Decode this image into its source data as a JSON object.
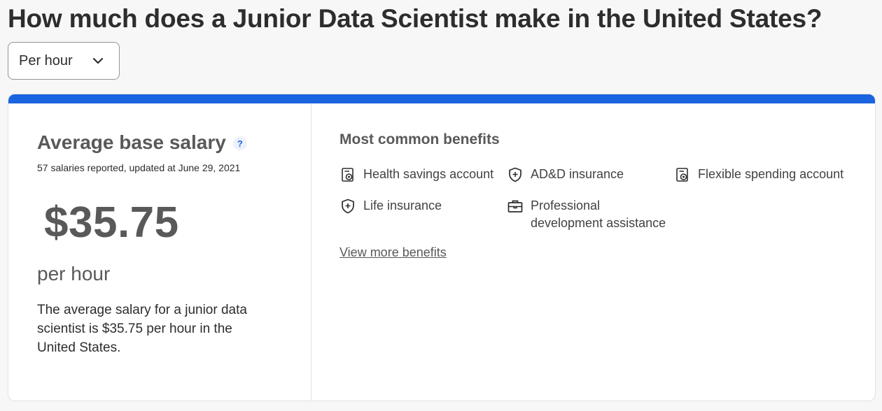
{
  "page": {
    "title": "How much does a Junior Data Scientist make in the United States?"
  },
  "period_select": {
    "value": "Per hour",
    "icon": "chevron-down-icon"
  },
  "colors": {
    "accent": "#1a64e0",
    "heading_gray": "#595959",
    "text": "#2d2d2d"
  },
  "salary": {
    "title": "Average base salary",
    "help_glyph": "?",
    "reported": "57 salaries reported, updated at June 29, 2021",
    "amount": "$35.75",
    "period": "per hour",
    "description": "The average salary for a junior data scientist is $35.75 per hour in the United States."
  },
  "benefits": {
    "title": "Most common benefits",
    "items": [
      {
        "label": "Health savings account",
        "icon": "document-coin-icon"
      },
      {
        "label": "AD&D insurance",
        "icon": "shield-icon"
      },
      {
        "label": "Flexible spending account",
        "icon": "document-coin-icon"
      },
      {
        "label": "Life insurance",
        "icon": "shield-icon"
      },
      {
        "label": "Professional development assistance",
        "icon": "briefcase-icon"
      }
    ],
    "view_more": "View more benefits"
  }
}
